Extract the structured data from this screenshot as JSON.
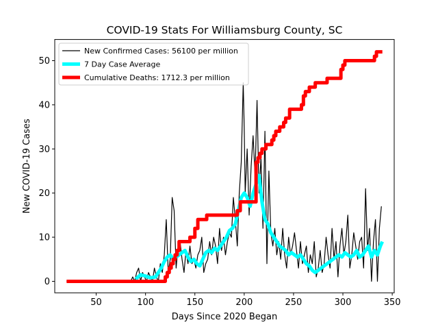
{
  "chart_data": {
    "type": "line",
    "title": "COVID-19 Stats For Williamsburg County, SC",
    "xlabel": "Days Since 2020 Began",
    "ylabel": "New COVID-19 Cases",
    "xlim": [
      8,
      352
    ],
    "ylim": [
      -2.6,
      54.8
    ],
    "xticks": [
      50,
      100,
      150,
      200,
      250,
      300,
      350
    ],
    "yticks": [
      0,
      10,
      20,
      30,
      40,
      50
    ],
    "grid": false,
    "legend": {
      "placement": "top-left"
    },
    "series": [
      {
        "name": "New Confirmed Cases: 56100 per million",
        "color": "#000000",
        "kind": "thin-line",
        "x": [
          20,
          30,
          40,
          50,
          60,
          70,
          80,
          85,
          87,
          89,
          91,
          93,
          95,
          97,
          99,
          101,
          103,
          105,
          107,
          109,
          111,
          113,
          115,
          117,
          119,
          121,
          123,
          125,
          127,
          129,
          131,
          133,
          135,
          137,
          139,
          141,
          143,
          145,
          147,
          149,
          151,
          153,
          155,
          157,
          159,
          161,
          163,
          165,
          167,
          169,
          171,
          173,
          175,
          177,
          179,
          181,
          183,
          185,
          187,
          189,
          191,
          193,
          195,
          197,
          199,
          200,
          201,
          203,
          205,
          207,
          209,
          211,
          213,
          215,
          217,
          219,
          221,
          223,
          225,
          227,
          229,
          231,
          233,
          235,
          237,
          239,
          241,
          243,
          245,
          247,
          249,
          251,
          253,
          255,
          257,
          259,
          261,
          263,
          265,
          267,
          269,
          271,
          273,
          275,
          277,
          279,
          281,
          283,
          285,
          287,
          289,
          291,
          293,
          295,
          297,
          299,
          301,
          303,
          305,
          307,
          309,
          311,
          313,
          315,
          317,
          319,
          321,
          323,
          325,
          327,
          329,
          331,
          333,
          335,
          337,
          339
        ],
        "y": [
          0,
          0,
          0,
          0,
          0,
          0,
          0,
          0,
          1,
          0,
          2,
          3,
          0,
          2,
          1,
          0,
          2,
          1,
          0,
          3,
          1,
          0,
          4,
          2,
          6,
          14,
          2,
          5,
          19,
          16,
          3,
          8,
          9,
          5,
          2,
          7,
          4,
          8,
          4,
          5,
          3,
          6,
          7,
          10,
          2,
          4,
          5,
          9,
          6,
          10,
          8,
          4,
          12,
          7,
          10,
          6,
          9,
          11,
          10,
          19,
          14,
          8,
          20,
          27,
          45,
          35,
          20,
          30,
          15,
          26,
          33,
          24,
          41,
          20,
          28,
          12,
          34,
          4,
          25,
          11,
          8,
          12,
          6,
          9,
          5,
          12,
          6,
          3,
          10,
          6,
          8,
          11,
          7,
          3,
          9,
          4,
          6,
          8,
          2,
          6,
          4,
          9,
          1,
          3,
          7,
          2,
          4,
          10,
          6,
          3,
          12,
          5,
          9,
          1,
          8,
          12,
          6,
          9,
          15,
          3,
          6,
          11,
          8,
          5,
          9,
          10,
          3,
          21,
          7,
          12,
          0,
          9,
          14,
          0,
          12,
          17
        ]
      },
      {
        "name": "7 Day Case Average",
        "color": "#00ffff",
        "kind": "thick-line",
        "x": [
          90,
          95,
          100,
          105,
          110,
          113,
          116,
          119,
          122,
          125,
          128,
          131,
          134,
          137,
          140,
          143,
          146,
          149,
          152,
          155,
          158,
          161,
          164,
          167,
          170,
          173,
          176,
          179,
          182,
          185,
          188,
          191,
          194,
          197,
          200,
          203,
          206,
          209,
          212,
          215,
          218,
          221,
          224,
          227,
          230,
          233,
          236,
          239,
          242,
          245,
          248,
          251,
          254,
          257,
          260,
          263,
          266,
          269,
          272,
          275,
          278,
          281,
          284,
          287,
          290,
          293,
          296,
          299,
          302,
          305,
          308,
          311,
          314,
          317,
          320,
          323,
          326,
          329,
          332,
          335,
          338,
          340
        ],
        "y": [
          0.5,
          1.5,
          1.2,
          0.8,
          1,
          2,
          3,
          4.5,
          5.5,
          6,
          5,
          5.5,
          6,
          6.5,
          7,
          5.5,
          4.5,
          5,
          4,
          3.5,
          5,
          6.5,
          7,
          6.5,
          7.5,
          7,
          8,
          9,
          10,
          11.5,
          12,
          13,
          16,
          19,
          20,
          19,
          17,
          20,
          22,
          24,
          18,
          14,
          13,
          11,
          10,
          9,
          8,
          7.5,
          7,
          6,
          6.5,
          6,
          5.5,
          6,
          5,
          4,
          3.5,
          2.5,
          2,
          2.5,
          3,
          3.5,
          4,
          4.5,
          5,
          5.5,
          6,
          5.5,
          6.5,
          6,
          5.5,
          6,
          7,
          5.5,
          6,
          7,
          8,
          5.5,
          7,
          6,
          8,
          9
        ]
      },
      {
        "name": "Cumulative Deaths: 1712.3 per million",
        "color": "#ff0000",
        "kind": "thick-step",
        "x": [
          20,
          118,
          120,
          122,
          124,
          126,
          128,
          130,
          132,
          134,
          140,
          145,
          150,
          153,
          156,
          160,
          162,
          165,
          170,
          175,
          180,
          186,
          190,
          193,
          196,
          200,
          205,
          210,
          212,
          214,
          216,
          218,
          220,
          222,
          224,
          226,
          228,
          230,
          232,
          234,
          236,
          238,
          240,
          242,
          244,
          246,
          248,
          250,
          252,
          254,
          256,
          258,
          260,
          262,
          264,
          266,
          268,
          270,
          272,
          274,
          276,
          278,
          280,
          282,
          284,
          286,
          288,
          290,
          292,
          294,
          296,
          298,
          300,
          302,
          304,
          306,
          308,
          310,
          312,
          320,
          330,
          332,
          334,
          336,
          338,
          340
        ],
        "y": [
          0,
          0,
          1,
          2,
          3,
          4,
          5,
          6,
          7,
          9,
          9,
          10,
          12,
          14,
          14,
          14,
          15,
          15,
          15,
          15,
          15,
          15,
          15,
          16,
          18,
          18,
          18,
          18,
          27,
          28,
          29,
          30,
          30,
          31,
          31,
          31,
          32,
          33,
          34,
          34,
          35,
          35,
          36,
          37,
          37,
          39,
          39,
          39,
          39,
          39,
          39,
          40,
          42,
          43,
          43,
          44,
          44,
          44,
          45,
          45,
          45,
          45,
          45,
          45,
          46,
          46,
          46,
          46,
          46,
          46,
          46,
          48,
          49,
          50,
          50,
          50,
          50,
          50,
          50,
          50,
          50,
          51,
          52,
          52,
          52,
          52
        ]
      }
    ]
  }
}
